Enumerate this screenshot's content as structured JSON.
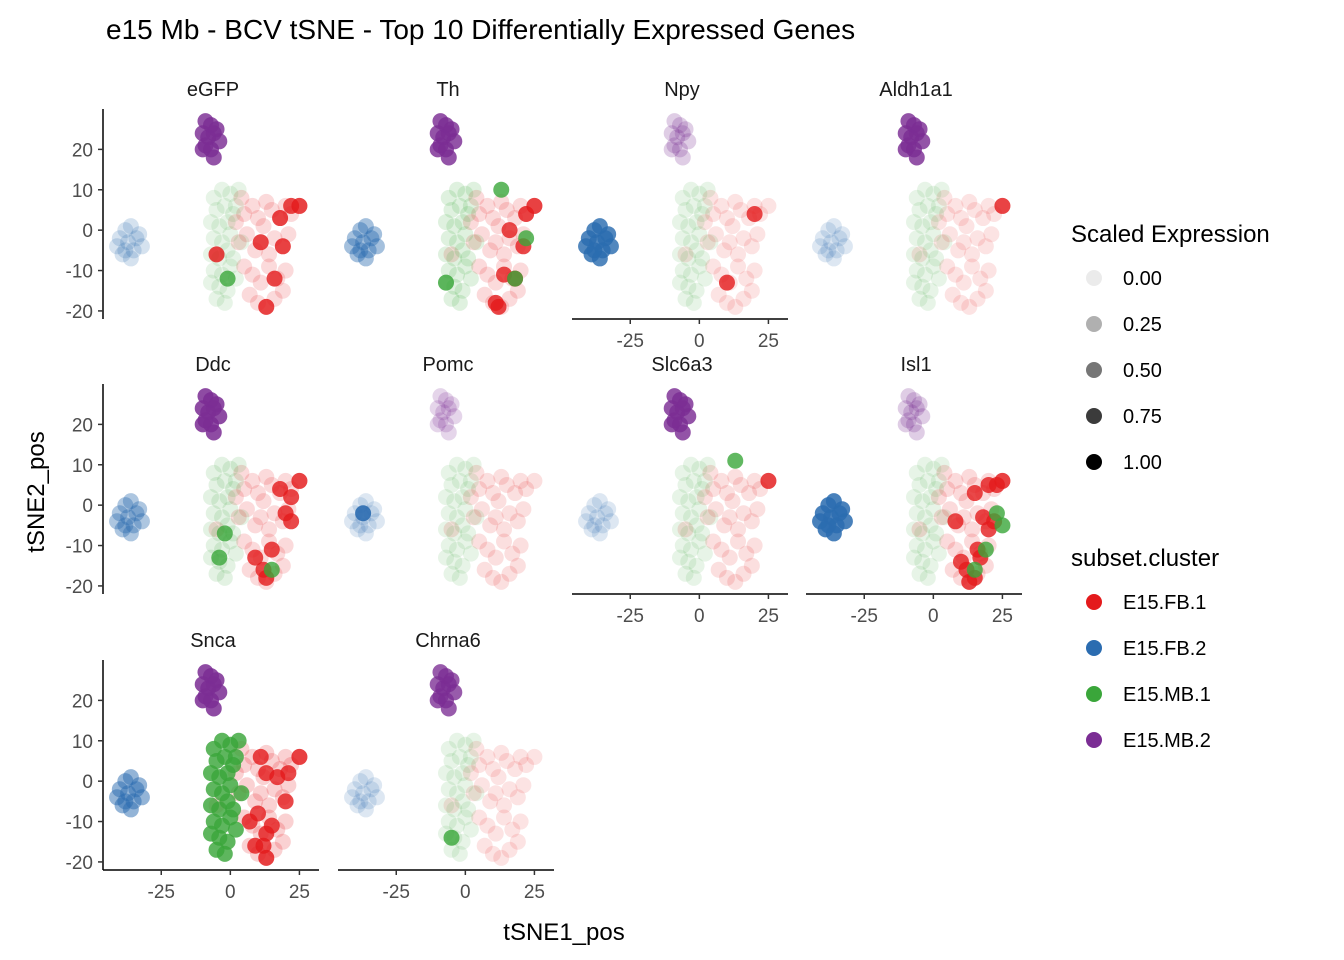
{
  "title": "e15 Mb - BCV tSNE - Top 10 Differentially Expressed Genes",
  "xlabel": "tSNE1_pos",
  "ylabel": "tSNE2_pos",
  "x_ticks": [
    "-25",
    "0",
    "25"
  ],
  "y_ticks": [
    "20",
    "10",
    "0",
    "-10",
    "-20"
  ],
  "legend_size": {
    "title": "Scaled Expression",
    "entries": [
      {
        "label": "0.00",
        "value": 0.0
      },
      {
        "label": "0.25",
        "value": 0.25
      },
      {
        "label": "0.50",
        "value": 0.5
      },
      {
        "label": "0.75",
        "value": 0.75
      },
      {
        "label": "1.00",
        "value": 1.0
      }
    ]
  },
  "legend_color": {
    "title": "subset.cluster",
    "entries": [
      {
        "label": "E15.FB.1",
        "color": "#e41a1c"
      },
      {
        "label": "E15.FB.2",
        "color": "#2b6cb0"
      },
      {
        "label": "E15.MB.1",
        "color": "#3aa63a"
      },
      {
        "label": "E15.MB.2",
        "color": "#7b2d94"
      }
    ]
  },
  "chart_data": {
    "type": "scatter",
    "facets": [
      "eGFP",
      "Th",
      "Npy",
      "Aldh1a1",
      "Ddc",
      "Pomc",
      "Slc6a3",
      "Isl1",
      "Snca",
      "Chrna6"
    ],
    "xlim": [
      -45,
      31
    ],
    "ylim": [
      -22,
      30
    ],
    "clusters": {
      "E15.FB.1": [
        [
          2,
          2
        ],
        [
          5,
          4
        ],
        [
          8,
          6
        ],
        [
          10,
          3
        ],
        [
          12,
          1
        ],
        [
          15,
          5
        ],
        [
          18,
          3
        ],
        [
          20,
          6
        ],
        [
          22,
          4
        ],
        [
          25,
          6
        ],
        [
          3,
          -3
        ],
        [
          6,
          -1
        ],
        [
          9,
          -5
        ],
        [
          11,
          -3
        ],
        [
          14,
          -6
        ],
        [
          16,
          -2
        ],
        [
          19,
          -4
        ],
        [
          21,
          -1
        ],
        [
          5,
          -9
        ],
        [
          8,
          -11
        ],
        [
          11,
          -13
        ],
        [
          14,
          -9
        ],
        [
          17,
          -12
        ],
        [
          19,
          -15
        ],
        [
          7,
          -16
        ],
        [
          10,
          -18
        ],
        [
          13,
          -19
        ],
        [
          16,
          -17
        ],
        [
          20,
          -10
        ],
        [
          -5,
          -6
        ],
        [
          4,
          8
        ],
        [
          13,
          7
        ]
      ],
      "E15.FB.2": [
        [
          -38,
          0
        ],
        [
          -36,
          1
        ],
        [
          -40,
          -2
        ],
        [
          -37,
          -3
        ],
        [
          -34,
          -2
        ],
        [
          -41,
          -4
        ],
        [
          -38,
          -5
        ],
        [
          -35,
          -5
        ],
        [
          -32,
          -4
        ],
        [
          -39,
          -6
        ],
        [
          -36,
          -7
        ],
        [
          -33,
          -1
        ]
      ],
      "E15.MB.1": [
        [
          -6,
          8
        ],
        [
          -3,
          10
        ],
        [
          0,
          9
        ],
        [
          3,
          10
        ],
        [
          -5,
          5
        ],
        [
          -2,
          6
        ],
        [
          1,
          4
        ],
        [
          -7,
          2
        ],
        [
          -4,
          1
        ],
        [
          -1,
          2
        ],
        [
          -6,
          -2
        ],
        [
          -3,
          -3
        ],
        [
          0,
          -1
        ],
        [
          -7,
          -6
        ],
        [
          -4,
          -7
        ],
        [
          -1,
          -5
        ],
        [
          -6,
          -10
        ],
        [
          -3,
          -11
        ],
        [
          0,
          -9
        ],
        [
          -7,
          -13
        ],
        [
          -4,
          -14
        ],
        [
          -1,
          -15
        ],
        [
          2,
          -12
        ],
        [
          -5,
          -17
        ],
        [
          -2,
          -18
        ],
        [
          1,
          -7
        ],
        [
          4,
          -3
        ],
        [
          2,
          6
        ]
      ],
      "E15.MB.2": [
        [
          -9,
          27
        ],
        [
          -7,
          26
        ],
        [
          -10,
          24
        ],
        [
          -8,
          23
        ],
        [
          -6,
          24
        ],
        [
          -5,
          25
        ],
        [
          -9,
          21
        ],
        [
          -7,
          20
        ],
        [
          -4,
          22
        ],
        [
          -6,
          18
        ],
        [
          -10,
          20
        ]
      ]
    },
    "expression": {
      "eGFP": {
        "E15.MB.2": 0.95,
        "E15.FB.1": 0.1,
        "E15.FB.2": 0.15,
        "E15.MB.1": 0.05,
        "high_fb1": [
          [
            22,
            6
          ],
          [
            25,
            6
          ],
          [
            18,
            3
          ],
          [
            11,
            -3
          ],
          [
            19,
            -4
          ],
          [
            16,
            -12
          ],
          [
            13,
            -19
          ],
          [
            -5,
            -6
          ]
        ],
        "high_mb1": [
          [
            -1,
            -12
          ]
        ]
      },
      "Th": {
        "E15.MB.2": 0.95,
        "E15.FB.1": 0.1,
        "E15.FB.2": 0.45,
        "E15.MB.1": 0.1,
        "high_fb1": [
          [
            25,
            6
          ],
          [
            22,
            4
          ],
          [
            21,
            -4
          ],
          [
            14,
            -11
          ],
          [
            18,
            -12
          ],
          [
            12,
            -19
          ],
          [
            11,
            -18
          ],
          [
            16,
            0
          ]
        ],
        "high_mb1": [
          [
            -7,
            -13
          ],
          [
            22,
            -2
          ],
          [
            18,
            -12
          ],
          [
            13,
            10
          ]
        ]
      },
      "Npy": {
        "E15.MB.2": 0.2,
        "E15.FB.2": 0.95,
        "E15.FB.1": 0.05,
        "E15.MB.1": 0.05,
        "high_fb1": [
          [
            20,
            4
          ],
          [
            10,
            -13
          ]
        ],
        "high_mb1": []
      },
      "Aldh1a1": {
        "E15.MB.2": 0.95,
        "E15.FB.1": 0.05,
        "E15.FB.2": 0.1,
        "E15.MB.1": 0.05,
        "high_fb1": [
          [
            25,
            6
          ]
        ],
        "high_mb1": []
      },
      "Ddc": {
        "E15.MB.2": 1.0,
        "E15.FB.1": 0.1,
        "E15.FB.2": 0.4,
        "E15.MB.1": 0.08,
        "high_fb1": [
          [
            18,
            4
          ],
          [
            22,
            2
          ],
          [
            20,
            -2
          ],
          [
            22,
            -4
          ],
          [
            12,
            -16
          ],
          [
            13,
            -18
          ],
          [
            15,
            -11
          ],
          [
            9,
            -13
          ],
          [
            25,
            6
          ]
        ],
        "high_mb1": [
          [
            -4,
            -13
          ],
          [
            -2,
            -7
          ],
          [
            15,
            -16
          ]
        ]
      },
      "Pomc": {
        "E15.MB.2": 0.15,
        "E15.FB.2": 0.1,
        "E15.FB.1": 0.08,
        "E15.MB.1": 0.05,
        "high_fb1": [],
        "high_mb1": [],
        "high_fb2": [
          [
            -37,
            -2
          ]
        ]
      },
      "Slc6a3": {
        "E15.MB.2": 0.95,
        "E15.FB.1": 0.08,
        "E15.FB.2": 0.1,
        "E15.MB.1": 0.05,
        "high_fb1": [
          [
            25,
            6
          ]
        ],
        "high_mb1": [
          [
            13,
            11
          ]
        ]
      },
      "Isl1": {
        "E15.MB.2": 0.2,
        "E15.FB.2": 1.0,
        "E15.FB.1": 0.1,
        "E15.MB.1": 0.05,
        "high_fb1": [
          [
            15,
            3
          ],
          [
            20,
            5
          ],
          [
            23,
            5
          ],
          [
            25,
            6
          ],
          [
            8,
            -4
          ],
          [
            18,
            -3
          ],
          [
            22,
            -4
          ],
          [
            20,
            -6
          ],
          [
            16,
            -11
          ],
          [
            17,
            -13
          ],
          [
            12,
            -16
          ],
          [
            13,
            -19
          ],
          [
            10,
            -14
          ],
          [
            15,
            -18
          ]
        ],
        "high_mb1": [
          [
            23,
            -2
          ],
          [
            25,
            -5
          ],
          [
            19,
            -11
          ],
          [
            15,
            -16
          ]
        ]
      },
      "Snca": {
        "E15.MB.2": 1.0,
        "E15.FB.2": 0.55,
        "E15.FB.1": 0.15,
        "E15.MB.1": 0.95,
        "high_fb1": [
          [
            11,
            6
          ],
          [
            13,
            2
          ],
          [
            17,
            1
          ],
          [
            21,
            2
          ],
          [
            10,
            -8
          ],
          [
            13,
            -13
          ],
          [
            15,
            -11
          ],
          [
            9,
            -16
          ],
          [
            13,
            -19
          ],
          [
            12,
            -16
          ],
          [
            20,
            -5
          ],
          [
            25,
            6
          ],
          [
            7,
            -10
          ]
        ],
        "high_mb1": []
      },
      "Chrna6": {
        "E15.MB.2": 0.9,
        "E15.FB.1": 0.05,
        "E15.FB.2": 0.1,
        "E15.MB.1": 0.05,
        "high_fb1": [],
        "high_mb1": [
          [
            -5,
            -14
          ]
        ]
      }
    }
  }
}
